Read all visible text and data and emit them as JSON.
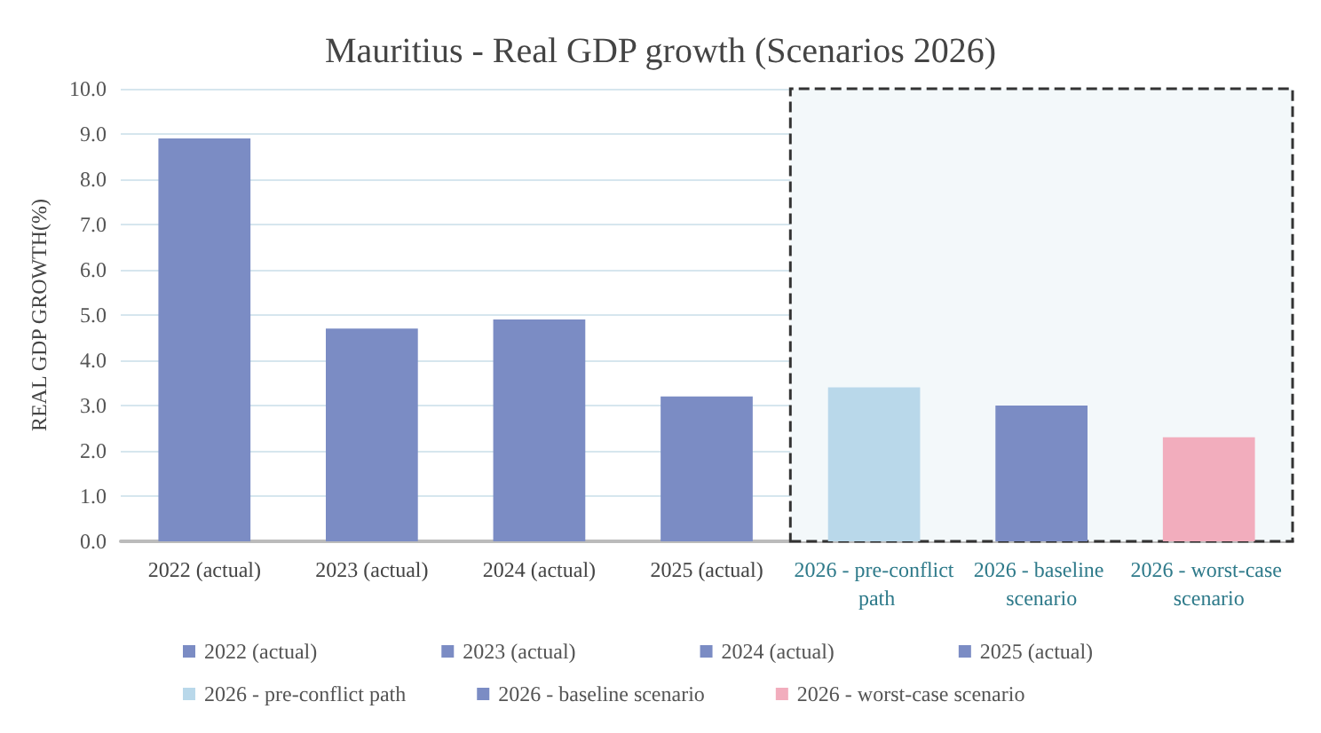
{
  "chart_data": {
    "type": "bar",
    "title": "Mauritius - Real GDP growth (Scenarios 2026)",
    "ylabel": "REAL GDP GROWTH(%)",
    "categories": [
      "2022 (actual)",
      "2023 (actual)",
      "2024 (actual)",
      "2025 (actual)",
      "2026 - pre-conflict path",
      "2026 - baseline scenario",
      "2026 - worst-case scenario"
    ],
    "series": [
      {
        "name": "2022 (actual)",
        "color": "#7b8cc4",
        "values": [
          8.9,
          null,
          null,
          null,
          null,
          null,
          null
        ]
      },
      {
        "name": "2023 (actual)",
        "color": "#7b8cc4",
        "values": [
          null,
          4.7,
          null,
          null,
          null,
          null,
          null
        ]
      },
      {
        "name": "2024 (actual)",
        "color": "#7b8cc4",
        "values": [
          null,
          null,
          4.9,
          null,
          null,
          null,
          null
        ]
      },
      {
        "name": "2025 (actual)",
        "color": "#7b8cc4",
        "values": [
          null,
          null,
          null,
          3.2,
          null,
          null,
          null
        ]
      },
      {
        "name": "2026 - pre-conflict path",
        "color": "#b9d8ea",
        "values": [
          null,
          null,
          null,
          null,
          3.4,
          null,
          null
        ]
      },
      {
        "name": "2026 - baseline scenario",
        "color": "#7b8cc4",
        "values": [
          null,
          null,
          null,
          null,
          null,
          3.0,
          null
        ]
      },
      {
        "name": "2026 - worst-case scenario",
        "color": "#f2adbd",
        "values": [
          null,
          null,
          null,
          null,
          null,
          null,
          2.3
        ]
      }
    ],
    "stacked": true,
    "ylim": [
      0,
      10
    ],
    "yticks": [
      {
        "value": 0,
        "label": "0.0"
      },
      {
        "value": 1,
        "label": "1.0"
      },
      {
        "value": 2,
        "label": "2.0"
      },
      {
        "value": 3,
        "label": "3.0"
      },
      {
        "value": 4,
        "label": "4.0"
      },
      {
        "value": 5,
        "label": "5.0"
      },
      {
        "value": 6,
        "label": "6.0"
      },
      {
        "value": 7,
        "label": "7.0"
      },
      {
        "value": 8,
        "label": "8.0"
      },
      {
        "value": 9,
        "label": "9.0"
      },
      {
        "value": 10,
        "label": "10.0"
      }
    ],
    "bands": [
      {
        "axis": "x",
        "from": "2026 - pre-conflict path",
        "to": "2026 - worst-case scenario",
        "color": "#f3f8fa"
      }
    ],
    "grid": true,
    "legend": "bottom"
  }
}
